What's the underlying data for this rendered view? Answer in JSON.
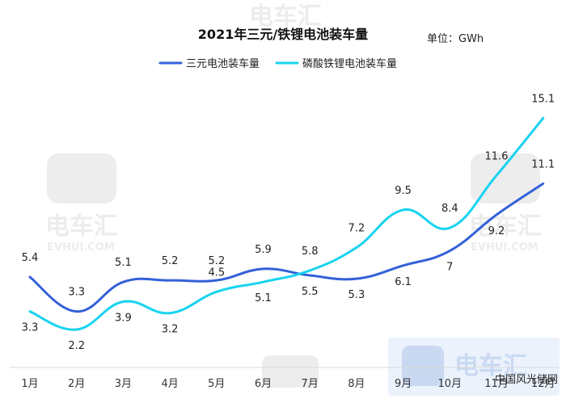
{
  "chart_data": {
    "type": "line",
    "title": "2021年三元/铁锂电池装车量",
    "unit": "单位：GWh",
    "categories": [
      "1月",
      "2月",
      "3月",
      "4月",
      "5月",
      "6月",
      "7月",
      "8月",
      "9月",
      "10月",
      "11月",
      "12月"
    ],
    "series": [
      {
        "name": "三元电池装车量",
        "color": "#3461d9",
        "values": [
          5.4,
          3.3,
          5.1,
          5.2,
          5.2,
          5.9,
          5.5,
          5.3,
          6.1,
          7,
          9.2,
          11.1
        ]
      },
      {
        "name": "磷酸铁锂电池装车量",
        "color": "#19d3f0",
        "values": [
          3.3,
          2.2,
          3.9,
          3.2,
          4.5,
          5.1,
          5.8,
          7.2,
          9.5,
          8.4,
          11.6,
          15.1
        ]
      }
    ],
    "legend_position": "top-center",
    "grid": false
  },
  "watermark": {
    "brand": "电车汇",
    "domain": "EVHUI.COM"
  },
  "source_label": "中国风光储网"
}
